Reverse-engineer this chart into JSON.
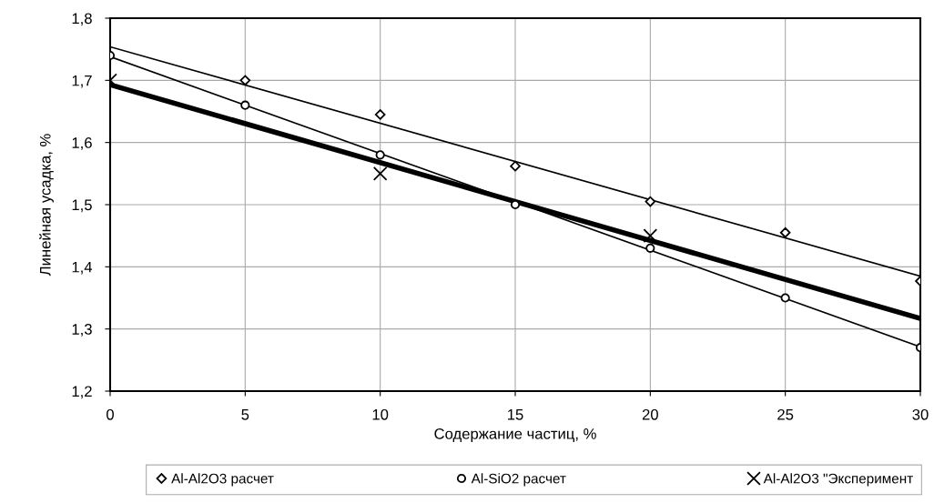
{
  "chart_data": {
    "type": "scatter",
    "xlabel": "Содержание частиц, %",
    "ylabel": "Линейная усадка, %",
    "xlim": [
      0,
      30
    ],
    "xticks": [
      0,
      5,
      10,
      15,
      20,
      25,
      30
    ],
    "ylim": [
      1.2,
      1.8
    ],
    "yticks": [
      {
        "value": 1.2,
        "label": "1,2"
      },
      {
        "value": 1.3,
        "label": "1,3"
      },
      {
        "value": 1.4,
        "label": "1,4"
      },
      {
        "value": 1.5,
        "label": "1,5"
      },
      {
        "value": 1.6,
        "label": "1,6"
      },
      {
        "value": 1.7,
        "label": "1,7"
      },
      {
        "value": 1.8,
        "label": "1,8"
      }
    ],
    "grid": true,
    "legend": "bottom",
    "series": [
      {
        "name": "Al-Al2O3 расчет",
        "marker": "diamond",
        "color": "#000000",
        "x": [
          5,
          10,
          15,
          20,
          25,
          30
        ],
        "values": [
          1.7,
          1.645,
          1.562,
          1.505,
          1.455,
          1.377
        ]
      },
      {
        "name": "Al-SiO2 расчет",
        "marker": "circle",
        "color": "#000000",
        "x": [
          0,
          5,
          10,
          15,
          20,
          25,
          30
        ],
        "values": [
          1.74,
          1.66,
          1.58,
          1.5,
          1.43,
          1.35,
          1.27
        ]
      },
      {
        "name": "Al-Al2O3 \"Эксперимент",
        "marker": "cross",
        "color": "#000000",
        "x": [
          0,
          10,
          20
        ],
        "values": [
          1.7,
          1.55,
          1.45
        ]
      },
      {
        "type": "line",
        "marker": "none",
        "color": "#000000",
        "x": [
          0,
          30
        ],
        "values": [
          1.754,
          1.385
        ]
      },
      {
        "type": "line",
        "marker": "none",
        "color": "#000000",
        "x": [
          0,
          30
        ],
        "values": [
          1.738,
          1.271
        ]
      },
      {
        "type": "line",
        "marker": "none",
        "color": "#000000",
        "x": [
          0,
          30
        ],
        "values": [
          1.693,
          1.317
        ]
      }
    ]
  }
}
